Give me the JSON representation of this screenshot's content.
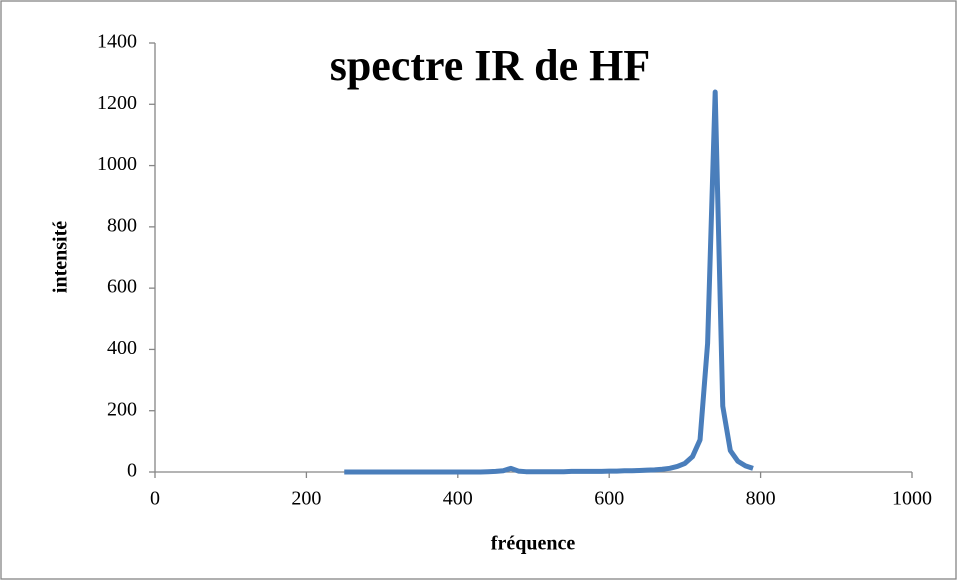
{
  "chart_data": {
    "type": "line",
    "title": "spectre IR de HF",
    "x_label": "fréquence",
    "y_label": "intensité",
    "x": [
      250,
      260,
      270,
      280,
      290,
      300,
      310,
      320,
      330,
      340,
      350,
      360,
      370,
      380,
      390,
      400,
      410,
      420,
      430,
      440,
      450,
      460,
      470,
      480,
      490,
      500,
      510,
      520,
      530,
      540,
      550,
      560,
      570,
      580,
      590,
      600,
      610,
      620,
      630,
      640,
      650,
      660,
      670,
      680,
      690,
      700,
      710,
      720,
      730,
      740,
      750,
      760,
      770,
      780,
      790
    ],
    "series": [
      {
        "name": "intensité",
        "color": "#4a7ebb",
        "values": [
          0,
          0,
          0,
          0,
          0,
          0,
          0,
          0,
          0,
          0,
          0,
          0,
          0,
          0,
          0,
          0,
          0,
          0,
          0,
          1,
          2,
          4,
          12,
          3,
          1,
          1,
          1,
          1,
          1,
          1,
          2,
          2,
          2,
          2,
          2,
          3,
          3,
          4,
          4,
          5,
          6,
          7,
          9,
          12,
          18,
          28,
          50,
          105,
          420,
          1240,
          215,
          70,
          35,
          20,
          12
        ]
      }
    ],
    "xlim": [
      0,
      1000
    ],
    "xticks": [
      0,
      200,
      400,
      600,
      800,
      1000
    ],
    "ylim": [
      0,
      1400
    ],
    "yticks": [
      0,
      200,
      400,
      600,
      800,
      1000,
      1200,
      1400
    ],
    "grid": false
  }
}
